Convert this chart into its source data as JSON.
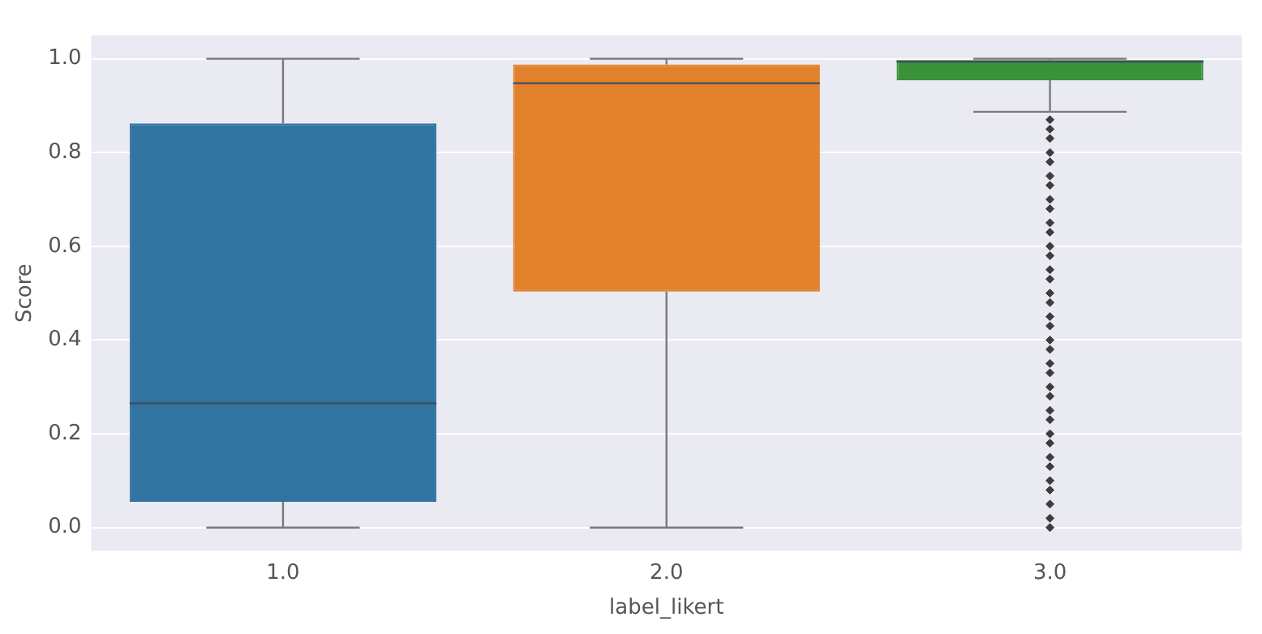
{
  "chart_data": {
    "type": "box",
    "xlabel": "label_likert",
    "ylabel": "Score",
    "categories": [
      "1.0",
      "2.0",
      "3.0"
    ],
    "colors": [
      "#3274a1",
      "#e1812c",
      "#3a923a"
    ],
    "boxes": [
      {
        "low": 0.0,
        "q1": 0.055,
        "median": 0.265,
        "q3": 0.862,
        "high": 1.0
      },
      {
        "low": 0.0,
        "q1": 0.503,
        "median": 0.948,
        "q3": 0.988,
        "high": 1.0
      },
      {
        "low": 0.887,
        "q1": 0.954,
        "median": 0.994,
        "q3": 0.997,
        "high": 1.0,
        "outliers": [
          0.0,
          0.02,
          0.05,
          0.08,
          0.1,
          0.13,
          0.15,
          0.18,
          0.2,
          0.23,
          0.25,
          0.28,
          0.3,
          0.33,
          0.35,
          0.38,
          0.4,
          0.43,
          0.45,
          0.48,
          0.5,
          0.53,
          0.55,
          0.58,
          0.6,
          0.63,
          0.65,
          0.68,
          0.7,
          0.73,
          0.75,
          0.78,
          0.8,
          0.83,
          0.85,
          0.87
        ]
      }
    ],
    "ylim": [
      -0.05,
      1.05
    ],
    "yticks": [
      {
        "value": 0,
        "label": "0.0"
      },
      0.2,
      0.4,
      0.6,
      0.8,
      {
        "value": 1,
        "label": "1.0"
      }
    ],
    "grid": "y",
    "marker": "diamond"
  }
}
